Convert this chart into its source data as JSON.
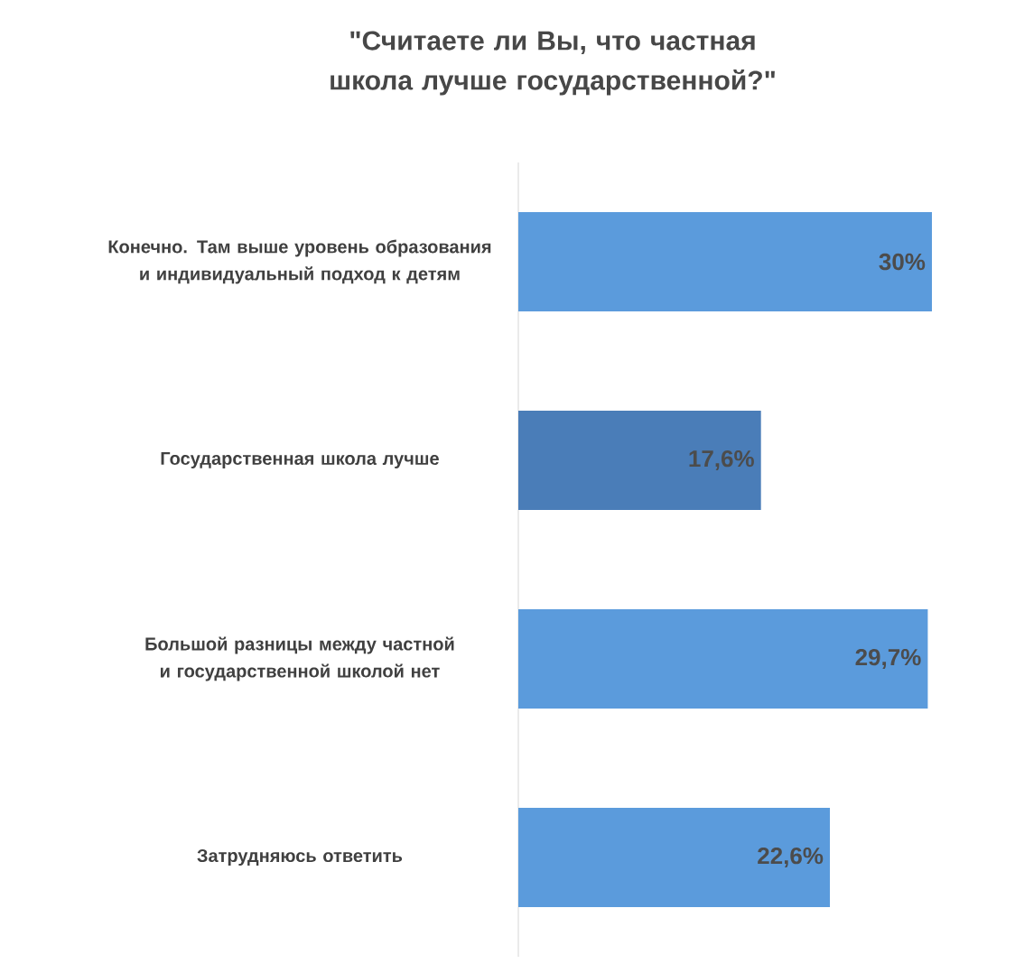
{
  "chart_data": {
    "type": "bar",
    "orientation": "horizontal",
    "title": "\"Считаете ли Вы, что частная школа лучше государственной?\"",
    "categories": [
      "Конечно. Там выше уровень образования и индивидуальный подход к детям",
      "Государственная школа лучше",
      "Большой разницы между частной и государственной школой нет",
      "Затрудняюсь ответить"
    ],
    "values": [
      30,
      17.6,
      29.7,
      22.6
    ],
    "value_labels": [
      "30%",
      "17,6%",
      "29,7%",
      "22,6%"
    ],
    "colors": [
      "#5b9bdc",
      "#4a7db8",
      "#5b9bdc",
      "#5b9bdc"
    ]
  }
}
